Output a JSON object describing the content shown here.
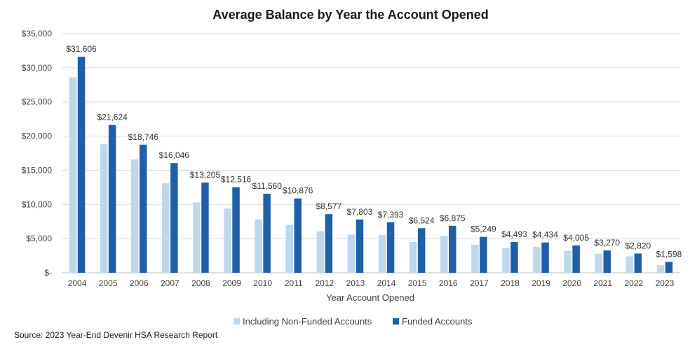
{
  "source_note": "Source: 2023 Year-End Devenir HSA Research Report",
  "chart_data": {
    "type": "bar",
    "title": "Average Balance by Year the Account Opened",
    "xlabel": "Year Account  Opened",
    "ylabel": "",
    "ylim": [
      0,
      35000
    ],
    "yticks": [
      0,
      5000,
      10000,
      15000,
      20000,
      25000,
      30000,
      35000
    ],
    "ytick_labels": [
      "$-",
      "$5,000",
      "$10,000",
      "$15,000",
      "$20,000",
      "$25,000",
      "$30,000",
      "$35,000"
    ],
    "grid": true,
    "legend_position": "bottom",
    "categories": [
      "2004",
      "2005",
      "2006",
      "2007",
      "2008",
      "2009",
      "2010",
      "2011",
      "2012",
      "2013",
      "2014",
      "2015",
      "2016",
      "2017",
      "2018",
      "2019",
      "2020",
      "2021",
      "2022",
      "2023"
    ],
    "series": [
      {
        "name": "Including Non-Funded Accounts",
        "color": "#bdd7ee",
        "values": [
          28600,
          18800,
          16600,
          13100,
          10300,
          9400,
          7800,
          7000,
          6100,
          5600,
          5500,
          4500,
          5400,
          4100,
          3600,
          3800,
          3200,
          2800,
          2400,
          1100
        ]
      },
      {
        "name": "Funded Accounts",
        "color": "#1f5fa8",
        "values": [
          31606,
          21624,
          18746,
          16046,
          13205,
          12516,
          11560,
          10876,
          8577,
          7803,
          7393,
          6524,
          6875,
          5249,
          4493,
          4434,
          4005,
          3270,
          2820,
          1598
        ],
        "data_labels": [
          "$31,606",
          "$21,624",
          "$18,746",
          "$16,046",
          "$13,205",
          "$12,516",
          "$11,560",
          "$10,876",
          "$8,577",
          "$7,803",
          "$7,393",
          "$6,524",
          "$6,875",
          "$5,249",
          "$4,493",
          "$4,434",
          "$4,005",
          "$3,270",
          "$2,820",
          "$1,598"
        ]
      }
    ]
  }
}
